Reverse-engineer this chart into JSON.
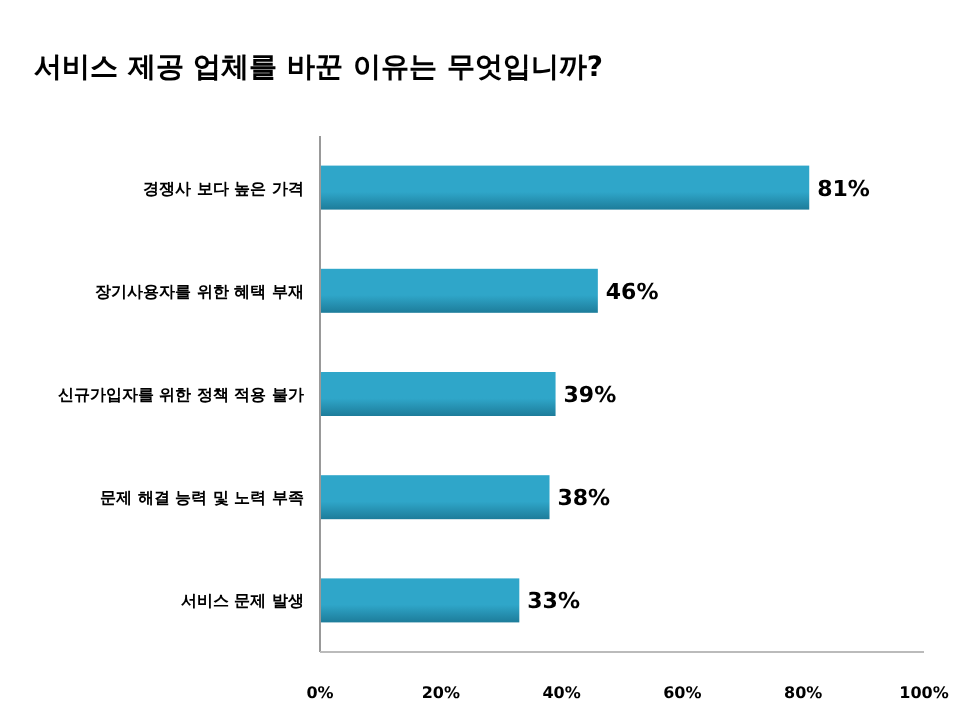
{
  "chart_data": {
    "type": "bar",
    "orientation": "horizontal",
    "title": "서비스 제공 업체를 바꾼 이유는 무엇입니까?",
    "categories": [
      "경쟁사 보다 높은 가격",
      "장기사용자를 위한 혜택 부재",
      "신규가입자를 위한 정책 적용 불가",
      "문제 해결 능력 및 노력 부족",
      "서비스 문제 발생"
    ],
    "values": [
      81,
      46,
      39,
      38,
      33
    ],
    "value_labels": [
      "81%",
      "46%",
      "39%",
      "38%",
      "33%"
    ],
    "color": "#2fa6c9",
    "xlim": [
      0,
      100
    ],
    "xticks": [
      {
        "value": 0,
        "label": "0%"
      },
      {
        "value": 20,
        "label": "20%"
      },
      {
        "value": 40,
        "label": "40%"
      },
      {
        "value": 60,
        "label": "60%"
      },
      {
        "value": 80,
        "label": "80%"
      },
      {
        "value": 100,
        "label": "100%"
      }
    ],
    "grid": false
  }
}
